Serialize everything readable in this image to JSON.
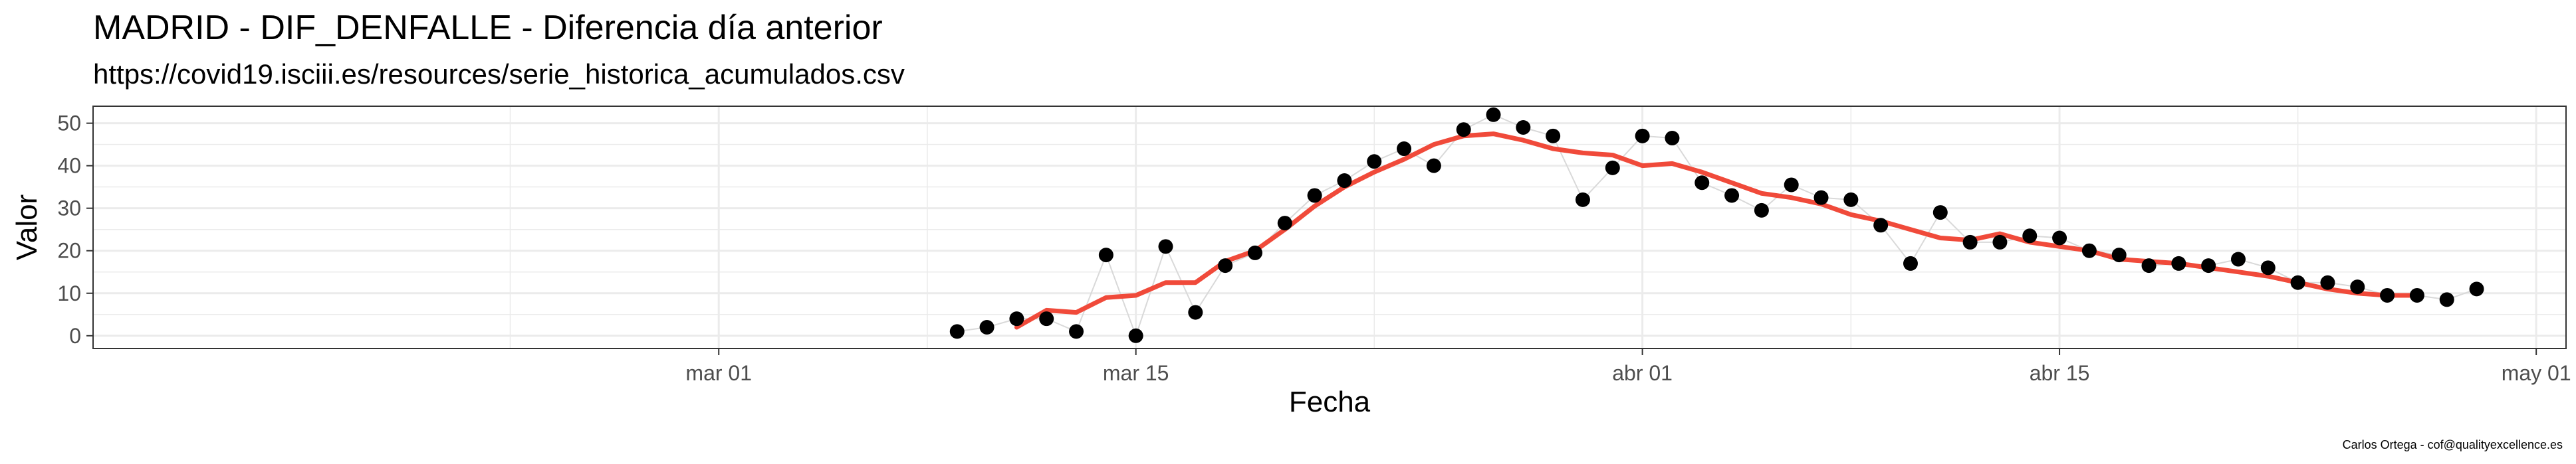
{
  "title": "MADRID - DIF_DENFALLE - Diferencia día anterior",
  "subtitle": "https://covid19.isciii.es/resources/serie_historica_acumulados.csv",
  "caption": "Carlos Ortega - cof@qualityexcellence.es",
  "colors": {
    "points": "#000000",
    "smooth": "#f04a3a",
    "raw_line": "#d9d9d9",
    "grid": "#ebebeb",
    "panel_border": "#333333"
  },
  "chart_data": {
    "type": "scatter",
    "xlabel": "Fecha",
    "ylabel": "Valor",
    "xlim": [
      "2020-02-09",
      "2020-05-02"
    ],
    "ylim": [
      -3,
      54
    ],
    "grid": true,
    "x_ticks": [
      {
        "date": "2020-03-01",
        "label": "mar 01"
      },
      {
        "date": "2020-03-15",
        "label": "mar 15"
      },
      {
        "date": "2020-04-01",
        "label": "abr 01"
      },
      {
        "date": "2020-04-15",
        "label": "abr 15"
      },
      {
        "date": "2020-05-01",
        "label": "may 01"
      }
    ],
    "y_ticks": [
      0,
      10,
      20,
      30,
      40,
      50
    ],
    "series": [
      {
        "kind": "points",
        "x": [
          "2020-03-09",
          "2020-03-10",
          "2020-03-11",
          "2020-03-12",
          "2020-03-13",
          "2020-03-14",
          "2020-03-15",
          "2020-03-16",
          "2020-03-17",
          "2020-03-18",
          "2020-03-19",
          "2020-03-20",
          "2020-03-21",
          "2020-03-22",
          "2020-03-23",
          "2020-03-24",
          "2020-03-25",
          "2020-03-26",
          "2020-03-27",
          "2020-03-28",
          "2020-03-29",
          "2020-03-30",
          "2020-03-31",
          "2020-04-01",
          "2020-04-02",
          "2020-04-03",
          "2020-04-04",
          "2020-04-05",
          "2020-04-06",
          "2020-04-07",
          "2020-04-08",
          "2020-04-09",
          "2020-04-10",
          "2020-04-11",
          "2020-04-12",
          "2020-04-13",
          "2020-04-14",
          "2020-04-15",
          "2020-04-16",
          "2020-04-17",
          "2020-04-18",
          "2020-04-19",
          "2020-04-20",
          "2020-04-21",
          "2020-04-22",
          "2020-04-23",
          "2020-04-24",
          "2020-04-25",
          "2020-04-26",
          "2020-04-27",
          "2020-04-28",
          "2020-04-29"
        ],
        "y": [
          1,
          2,
          4,
          4,
          1,
          19,
          0,
          21,
          5.5,
          16.5,
          19.5,
          26.5,
          33,
          36.5,
          41,
          44,
          40,
          48.5,
          52,
          49,
          47,
          32,
          39.5,
          47,
          46.5,
          36,
          33,
          29.5,
          35.5,
          32.5,
          32,
          26,
          17,
          29,
          22,
          22,
          23.5,
          23,
          20,
          19,
          16.5,
          17,
          16.5,
          18,
          16,
          12.5,
          12.5,
          11.5,
          9.5,
          9.5,
          8.5,
          11
        ]
      },
      {
        "kind": "moving-average",
        "x": [
          "2020-03-11",
          "2020-03-12",
          "2020-03-13",
          "2020-03-14",
          "2020-03-15",
          "2020-03-16",
          "2020-03-17",
          "2020-03-18",
          "2020-03-19",
          "2020-03-20",
          "2020-03-21",
          "2020-03-22",
          "2020-03-23",
          "2020-03-24",
          "2020-03-25",
          "2020-03-26",
          "2020-03-27",
          "2020-03-28",
          "2020-03-29",
          "2020-03-30",
          "2020-03-31",
          "2020-04-01",
          "2020-04-02",
          "2020-04-03",
          "2020-04-04",
          "2020-04-05",
          "2020-04-06",
          "2020-04-07",
          "2020-04-08",
          "2020-04-09",
          "2020-04-10",
          "2020-04-11",
          "2020-04-12",
          "2020-04-13",
          "2020-04-14",
          "2020-04-15",
          "2020-04-16",
          "2020-04-17",
          "2020-04-18",
          "2020-04-19",
          "2020-04-20",
          "2020-04-21",
          "2020-04-22",
          "2020-04-23",
          "2020-04-24",
          "2020-04-25",
          "2020-04-26",
          "2020-04-27"
        ],
        "y": [
          2,
          6,
          5.5,
          9,
          9.5,
          12.5,
          12.5,
          17.5,
          20,
          25,
          30.5,
          35,
          38.5,
          41.5,
          45,
          47,
          47.5,
          46,
          44,
          43,
          42.5,
          40,
          40.5,
          38.5,
          36,
          33.5,
          32.5,
          31,
          28.5,
          27,
          25,
          23,
          22.5,
          24,
          22,
          21,
          20,
          18,
          17.5,
          17,
          16,
          15,
          14,
          12.5,
          11,
          10,
          9.5,
          9.5
        ]
      }
    ]
  }
}
